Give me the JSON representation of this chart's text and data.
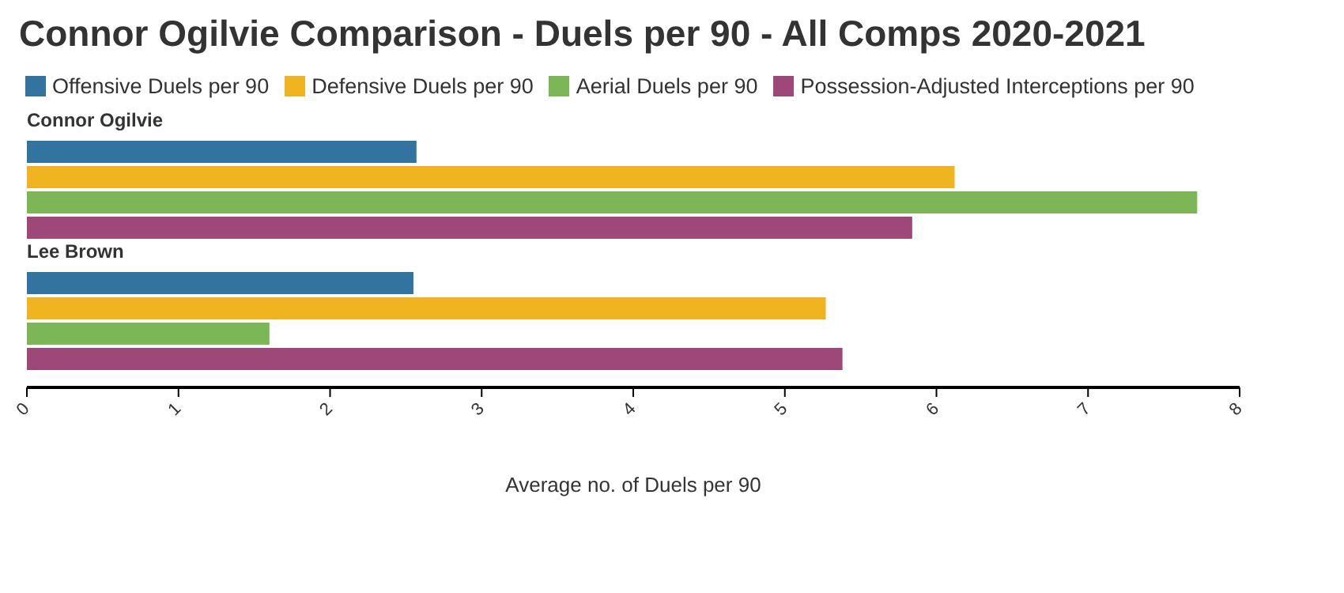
{
  "chart_data": {
    "type": "bar",
    "orientation": "horizontal",
    "title": "Connor Ogilvie Comparison - Duels per 90 - All Comps 2020-2021",
    "xlabel": "Average no. of Duels per 90",
    "categories": [
      "Connor Ogilvie",
      "Lee Brown"
    ],
    "series": [
      {
        "name": "Offensive Duels per 90",
        "color": "#33739f",
        "values": [
          2.57,
          2.55
        ]
      },
      {
        "name": "Defensive Duels per 90",
        "color": "#f0b421",
        "values": [
          6.12,
          5.27
        ]
      },
      {
        "name": "Aerial Duels per 90",
        "color": "#7cb757",
        "values": [
          7.72,
          1.6
        ]
      },
      {
        "name": "Possession-Adjusted Interceptions per 90",
        "color": "#9d4878",
        "values": [
          5.84,
          5.38
        ]
      }
    ],
    "xlim": [
      0,
      8
    ],
    "xticks": [
      0,
      1,
      2,
      3,
      4,
      5,
      6,
      7,
      8
    ],
    "grid": false,
    "legend": "top left"
  }
}
